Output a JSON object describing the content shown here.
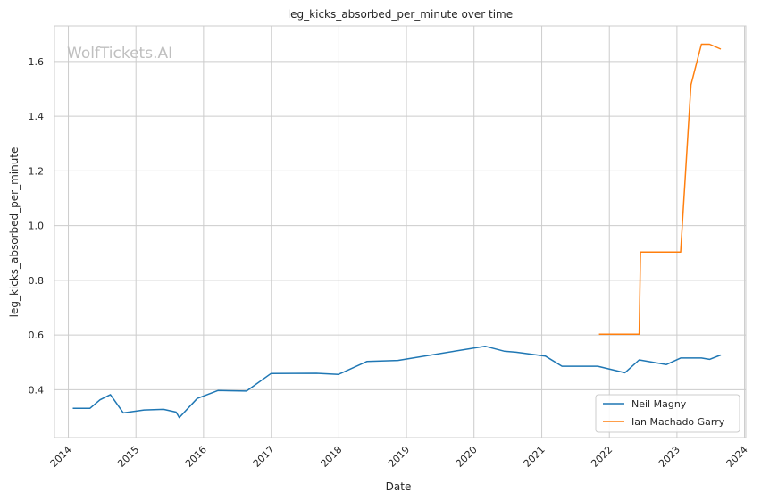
{
  "watermark": "WolfTickets.AI",
  "chart_data": {
    "type": "line",
    "title": "leg_kicks_absorbed_per_minute over time",
    "xlabel": "Date",
    "ylabel": "leg_kicks_absorbed_per_minute",
    "x_ticks": [
      "2014",
      "2015",
      "2016",
      "2017",
      "2018",
      "2019",
      "2020",
      "2021",
      "2022",
      "2023",
      "2024"
    ],
    "y_ticks": [
      "0.4",
      "0.6",
      "0.8",
      "1.0",
      "1.2",
      "1.4",
      "1.6"
    ],
    "xlim": [
      "2013-10-18",
      "2024-01-08"
    ],
    "ylim": [
      0.225,
      1.73
    ],
    "grid": true,
    "legend_position": "lower-right",
    "series": [
      {
        "name": "Neil Magny",
        "color": "#1f77b4",
        "points": [
          [
            "2014-01-25",
            0.332
          ],
          [
            "2014-04-28",
            0.332
          ],
          [
            "2014-06-21",
            0.363
          ],
          [
            "2014-08-16",
            0.382
          ],
          [
            "2014-10-25",
            0.315
          ],
          [
            "2015-02-14",
            0.326
          ],
          [
            "2015-05-30",
            0.328
          ],
          [
            "2015-08-06",
            0.318
          ],
          [
            "2015-08-23",
            0.298
          ],
          [
            "2015-11-28",
            0.368
          ],
          [
            "2016-03-19",
            0.397
          ],
          [
            "2016-08-20",
            0.395
          ],
          [
            "2016-12-30",
            0.459
          ],
          [
            "2017-09-02",
            0.46
          ],
          [
            "2017-12-30",
            0.456
          ],
          [
            "2018-06-01",
            0.503
          ],
          [
            "2018-11-16",
            0.507
          ],
          [
            "2020-03-01",
            0.559
          ],
          [
            "2020-06-11",
            0.541
          ],
          [
            "2020-08-15",
            0.537
          ],
          [
            "2021-01-20",
            0.523
          ],
          [
            "2021-04-20",
            0.486
          ],
          [
            "2021-10-30",
            0.486
          ],
          [
            "2022-03-26",
            0.462
          ],
          [
            "2022-06-11",
            0.509
          ],
          [
            "2022-11-05",
            0.492
          ],
          [
            "2023-01-21",
            0.516
          ],
          [
            "2023-05-13",
            0.516
          ],
          [
            "2023-06-26",
            0.511
          ],
          [
            "2023-08-26",
            0.527
          ]
        ]
      },
      {
        "name": "Ian Machado Garry",
        "color": "#ff7f0e",
        "points": [
          [
            "2021-11-06",
            0.603
          ],
          [
            "2022-06-11",
            0.603
          ],
          [
            "2022-06-18",
            0.903
          ],
          [
            "2023-01-21",
            0.903
          ],
          [
            "2023-03-18",
            1.515
          ],
          [
            "2023-05-13",
            1.663
          ],
          [
            "2023-06-26",
            1.663
          ],
          [
            "2023-08-26",
            1.645
          ]
        ]
      }
    ]
  }
}
